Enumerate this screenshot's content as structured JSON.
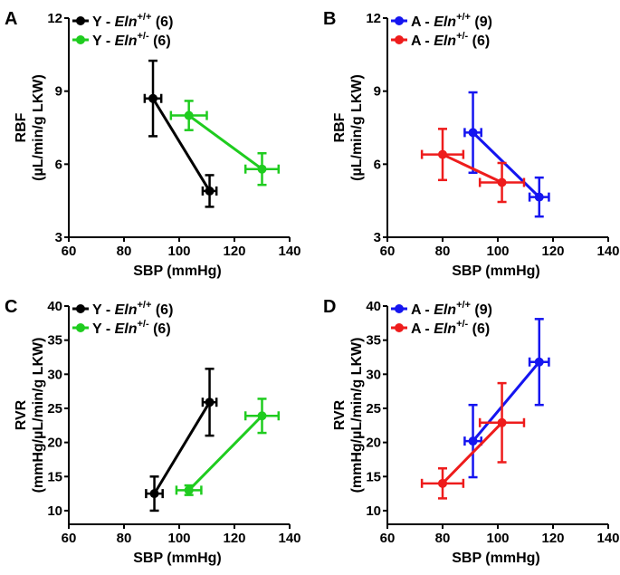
{
  "chart_data": [
    {
      "panel": "A",
      "type": "scatter",
      "xlabel": "SBP (mmHg)",
      "ylabel": [
        "RBF",
        "(µL/min/g LKW)"
      ],
      "xlim": [
        60,
        140
      ],
      "ylim": [
        3,
        12
      ],
      "xticks": [
        60,
        80,
        100,
        120,
        140
      ],
      "yticks": [
        3,
        6,
        9,
        12
      ],
      "series": [
        {
          "name": "Y - Eln+/+ (6)",
          "prefix": "Y - ",
          "gene": "Eln",
          "sup": "+/+",
          "n": "(6)",
          "color": "#000000",
          "points": [
            {
              "x": 90.5,
              "y": 8.7,
              "xerr": 3,
              "yerr": 1.55
            },
            {
              "x": 111,
              "y": 4.9,
              "xerr": 2.5,
              "yerr": 0.65
            }
          ]
        },
        {
          "name": "Y - Eln+/- (6)",
          "prefix": "Y - ",
          "gene": "Eln",
          "sup": "+/-",
          "n": "(6)",
          "color": "#1fcc1f",
          "points": [
            {
              "x": 103.5,
              "y": 8.0,
              "xerr": 6.5,
              "yerr": 0.6
            },
            {
              "x": 130,
              "y": 5.8,
              "xerr": 6,
              "yerr": 0.65
            }
          ]
        }
      ]
    },
    {
      "panel": "B",
      "type": "scatter",
      "xlabel": "SBP (mmHg)",
      "ylabel": [
        "RBF",
        "(µL/min/g LKW)"
      ],
      "xlim": [
        60,
        140
      ],
      "ylim": [
        3,
        12
      ],
      "xticks": [
        60,
        80,
        100,
        120,
        140
      ],
      "yticks": [
        3,
        6,
        9,
        12
      ],
      "series": [
        {
          "name": "A - Eln+/+ (9)",
          "prefix": "A - ",
          "gene": "Eln",
          "sup": "+/+",
          "n": "(9)",
          "color": "#1515f0",
          "points": [
            {
              "x": 91,
              "y": 7.3,
              "xerr": 3,
              "yerr": 1.65
            },
            {
              "x": 115,
              "y": 4.65,
              "xerr": 3.5,
              "yerr": 0.8
            }
          ]
        },
        {
          "name": "A - Eln+/- (6)",
          "prefix": "A - ",
          "gene": "Eln",
          "sup": "+/-",
          "n": "(6)",
          "color": "#ee1c1c",
          "points": [
            {
              "x": 80,
              "y": 6.4,
              "xerr": 7.5,
              "yerr": 1.05
            },
            {
              "x": 101.5,
              "y": 5.25,
              "xerr": 8,
              "yerr": 0.8
            }
          ]
        }
      ]
    },
    {
      "panel": "C",
      "type": "scatter",
      "xlabel": "SBP (mmHg)",
      "ylabel": [
        "RVR",
        "(mmHg/µL/min/g LKW)"
      ],
      "xlim": [
        60,
        140
      ],
      "ylim": [
        8,
        40
      ],
      "xticks": [
        60,
        80,
        100,
        120,
        140
      ],
      "yticks": [
        10,
        15,
        20,
        25,
        30,
        35,
        40
      ],
      "series": [
        {
          "name": "Y - Eln+/+ (6)",
          "prefix": "Y - ",
          "gene": "Eln",
          "sup": "+/+",
          "n": "(6)",
          "color": "#000000",
          "points": [
            {
              "x": 91,
              "y": 12.5,
              "xerr": 3,
              "yerr": 2.5
            },
            {
              "x": 111,
              "y": 25.9,
              "xerr": 2.5,
              "yerr": 4.9
            }
          ]
        },
        {
          "name": "Y - Eln+/- (6)",
          "prefix": "Y - ",
          "gene": "Eln",
          "sup": "+/-",
          "n": "(6)",
          "color": "#1fcc1f",
          "points": [
            {
              "x": 103.5,
              "y": 13.0,
              "xerr": 4.5,
              "yerr": 0.7
            },
            {
              "x": 130,
              "y": 23.9,
              "xerr": 6,
              "yerr": 2.5
            }
          ]
        }
      ]
    },
    {
      "panel": "D",
      "type": "scatter",
      "xlabel": "SBP (mmHg)",
      "ylabel": [
        "RVR",
        "(mmHg/µL/min/g LKW)"
      ],
      "xlim": [
        60,
        140
      ],
      "ylim": [
        8,
        40
      ],
      "xticks": [
        60,
        80,
        100,
        120,
        140
      ],
      "yticks": [
        10,
        15,
        20,
        25,
        30,
        35,
        40
      ],
      "series": [
        {
          "name": "A - Eln+/+ (9)",
          "prefix": "A - ",
          "gene": "Eln",
          "sup": "+/+",
          "n": "(9)",
          "color": "#1515f0",
          "points": [
            {
              "x": 91,
              "y": 20.2,
              "xerr": 3,
              "yerr": 5.3
            },
            {
              "x": 115,
              "y": 31.8,
              "xerr": 3.5,
              "yerr": 6.3
            }
          ]
        },
        {
          "name": "A - Eln+/- (6)",
          "prefix": "A - ",
          "gene": "Eln",
          "sup": "+/-",
          "n": "(6)",
          "color": "#ee1c1c",
          "points": [
            {
              "x": 80,
              "y": 14.0,
              "xerr": 7.5,
              "yerr": 2.2
            },
            {
              "x": 101.5,
              "y": 22.9,
              "xerr": 8,
              "yerr": 5.8
            }
          ]
        }
      ]
    }
  ]
}
